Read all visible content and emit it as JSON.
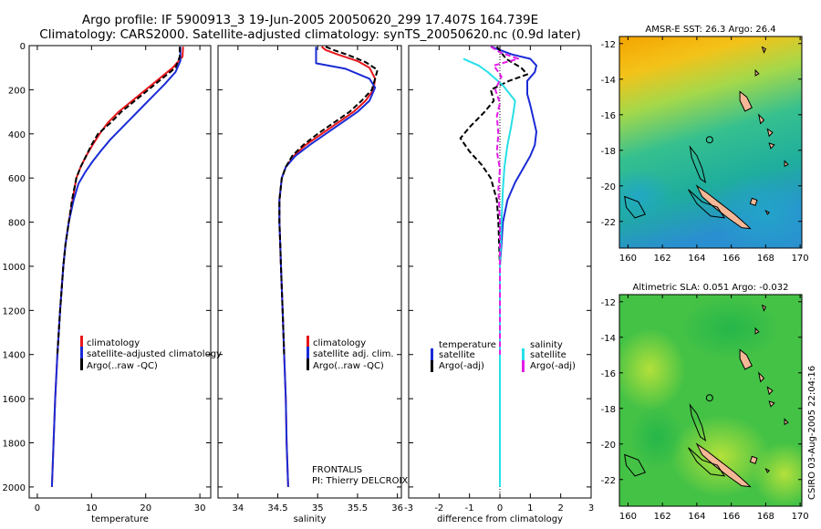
{
  "header": {
    "line1": "Argo profile: IF 5900913_3 19-Jun-2005 20050620_299 17.407S 164.739E",
    "line2": "Climatology: CARS2000. Satellite-adjusted climatology: synTS_20050620.nc (0.9d later)"
  },
  "credit": "CSIRO 03-Aug-2005 22:04:16",
  "chart_data": [
    {
      "id": "temperature",
      "type": "line",
      "xlabel": "temperature",
      "ylabel": "",
      "xlim": [
        -1.5,
        32
      ],
      "ylim": [
        2050,
        0
      ],
      "xticks": [
        0,
        10,
        20,
        30
      ],
      "yticks": [
        0,
        200,
        400,
        600,
        800,
        1000,
        1200,
        1400,
        1600,
        1800,
        2000
      ],
      "legend": [
        "climatology",
        "satellite-adjusted climatology",
        "Argo(..raw -QC)"
      ],
      "series": [
        {
          "name": "climatology",
          "color": "#e8161b",
          "dash": "",
          "points": [
            [
              26.9,
              5
            ],
            [
              26.8,
              50
            ],
            [
              25,
              100
            ],
            [
              22.5,
              150
            ],
            [
              20,
              200
            ],
            [
              17.5,
              250
            ],
            [
              15,
              300
            ],
            [
              13,
              350
            ],
            [
              11.5,
              400
            ],
            [
              10.2,
              450
            ],
            [
              9,
              500
            ],
            [
              8,
              550
            ],
            [
              7.2,
              600
            ],
            [
              6.5,
              700
            ],
            [
              5.8,
              800
            ],
            [
              5.2,
              900
            ],
            [
              4.8,
              1000
            ],
            [
              4.2,
              1200
            ],
            [
              3.7,
              1400
            ],
            [
              3.3,
              1600
            ],
            [
              3,
              1800
            ],
            [
              2.7,
              2000
            ]
          ]
        },
        {
          "name": "satellite-adjusted climatology",
          "color": "#1a2bd6",
          "dash": "",
          "points": [
            [
              26.4,
              5
            ],
            [
              26.4,
              70
            ],
            [
              25.5,
              120
            ],
            [
              23.5,
              175
            ],
            [
              21.5,
              225
            ],
            [
              19.5,
              275
            ],
            [
              17.5,
              325
            ],
            [
              15.5,
              375
            ],
            [
              13.5,
              425
            ],
            [
              11.8,
              475
            ],
            [
              10.2,
              525
            ],
            [
              8.8,
              575
            ],
            [
              7.6,
              625
            ],
            [
              6.7,
              700
            ],
            [
              5.8,
              800
            ],
            [
              5.2,
              900
            ],
            [
              4.8,
              1000
            ],
            [
              4.2,
              1200
            ],
            [
              3.7,
              1400
            ],
            [
              3.3,
              1600
            ],
            [
              3,
              1800
            ],
            [
              2.7,
              2000
            ]
          ]
        },
        {
          "name": "Argo(..raw -QC)",
          "color": "#000000",
          "dash": "6,3",
          "points": [
            [
              26.3,
              5
            ],
            [
              26.3,
              50
            ],
            [
              25.5,
              100
            ],
            [
              23,
              150
            ],
            [
              20.5,
              200
            ],
            [
              18,
              250
            ],
            [
              15.5,
              300
            ],
            [
              13.5,
              350
            ],
            [
              11.2,
              400
            ],
            [
              10,
              450
            ],
            [
              9,
              500
            ],
            [
              8,
              550
            ],
            [
              7.2,
              600
            ],
            [
              6.4,
              700
            ],
            [
              5.8,
              800
            ],
            [
              5.2,
              900
            ],
            [
              4.8,
              1000
            ],
            [
              4.2,
              1200
            ],
            [
              3.7,
              1400
            ]
          ]
        }
      ]
    },
    {
      "id": "salinity",
      "type": "line",
      "xlabel": "salinity",
      "ylabel": "",
      "xlim": [
        33.75,
        36.05
      ],
      "ylim": [
        2050,
        0
      ],
      "xticks": [
        34,
        34.5,
        35,
        35.5,
        36
      ],
      "legend": [
        "climatology",
        "satellite adj. clim.",
        "Argo(..raw -QC)"
      ],
      "annotation": [
        "FRONTALIS",
        "PI: Thierry DELCROIX"
      ],
      "series": [
        {
          "name": "climatology",
          "color": "#e8161b",
          "dash": "",
          "points": [
            [
              35.05,
              5
            ],
            [
              35.1,
              20
            ],
            [
              35.25,
              40
            ],
            [
              35.5,
              70
            ],
            [
              35.65,
              100
            ],
            [
              35.72,
              150
            ],
            [
              35.7,
              200
            ],
            [
              35.6,
              250
            ],
            [
              35.45,
              300
            ],
            [
              35.25,
              350
            ],
            [
              35.05,
              400
            ],
            [
              34.85,
              450
            ],
            [
              34.7,
              500
            ],
            [
              34.6,
              550
            ],
            [
              34.55,
              600
            ],
            [
              34.52,
              700
            ],
            [
              34.52,
              800
            ],
            [
              34.53,
              900
            ],
            [
              34.54,
              1000
            ],
            [
              34.56,
              1200
            ],
            [
              34.58,
              1400
            ],
            [
              34.6,
              1600
            ],
            [
              34.61,
              1800
            ],
            [
              34.63,
              2000
            ]
          ]
        },
        {
          "name": "satellite adj. clim.",
          "color": "#1a2bd6",
          "dash": "",
          "points": [
            [
              34.98,
              5
            ],
            [
              34.98,
              80
            ],
            [
              35.35,
              105
            ],
            [
              35.65,
              150
            ],
            [
              35.72,
              190
            ],
            [
              35.65,
              250
            ],
            [
              35.5,
              300
            ],
            [
              35.3,
              350
            ],
            [
              35.1,
              400
            ],
            [
              34.9,
              450
            ],
            [
              34.72,
              500
            ],
            [
              34.6,
              550
            ],
            [
              34.55,
              600
            ],
            [
              34.52,
              700
            ],
            [
              34.52,
              800
            ],
            [
              34.53,
              900
            ],
            [
              34.54,
              1000
            ],
            [
              34.56,
              1200
            ],
            [
              34.58,
              1400
            ],
            [
              34.6,
              1600
            ],
            [
              34.61,
              1800
            ],
            [
              34.63,
              2000
            ]
          ]
        },
        {
          "name": "Argo(..raw -QC)",
          "color": "#000000",
          "dash": "6,3",
          "points": [
            [
              35.1,
              5
            ],
            [
              35.2,
              20
            ],
            [
              35.4,
              45
            ],
            [
              35.6,
              75
            ],
            [
              35.75,
              110
            ],
            [
              35.72,
              150
            ],
            [
              35.68,
              200
            ],
            [
              35.55,
              250
            ],
            [
              35.4,
              300
            ],
            [
              35.2,
              350
            ],
            [
              35,
              400
            ],
            [
              34.82,
              450
            ],
            [
              34.68,
              500
            ],
            [
              34.6,
              550
            ],
            [
              34.55,
              600
            ],
            [
              34.52,
              700
            ],
            [
              34.52,
              800
            ],
            [
              34.53,
              900
            ],
            [
              34.54,
              1000
            ],
            [
              34.56,
              1200
            ],
            [
              34.58,
              1400
            ]
          ]
        }
      ]
    },
    {
      "id": "difference",
      "type": "line",
      "xlabel": "difference from climatology",
      "ylabel": "",
      "xlim": [
        -3,
        3
      ],
      "ylim": [
        2050,
        0
      ],
      "xticks": [
        -3,
        -2,
        -1,
        0,
        1,
        2,
        3
      ],
      "legend_left": [
        "temperature",
        "satellite",
        "Argo(-adj)"
      ],
      "legend_right": [
        "salinity",
        "satellite",
        "Argo(-adj)"
      ],
      "series": [
        {
          "name": "satellite",
          "color": "#1a2bd6",
          "dash": "",
          "points": [
            [
              -0.3,
              5
            ],
            [
              0.4,
              40
            ],
            [
              1,
              60
            ],
            [
              1.2,
              90
            ],
            [
              1.15,
              120
            ],
            [
              0.9,
              160
            ],
            [
              0.9,
              220
            ],
            [
              1,
              270
            ],
            [
              1.1,
              330
            ],
            [
              1.2,
              390
            ],
            [
              1.15,
              450
            ],
            [
              1,
              500
            ],
            [
              0.75,
              560
            ],
            [
              0.5,
              620
            ],
            [
              0.25,
              700
            ],
            [
              0.1,
              800
            ],
            [
              0.05,
              900
            ],
            [
              0,
              1000
            ],
            [
              0,
              2000
            ]
          ]
        },
        {
          "name": "Argo(-adj)",
          "color": "#000000",
          "dash": "6,3",
          "points": [
            [
              -0.1,
              5
            ],
            [
              0.2,
              60
            ],
            [
              0.7,
              100
            ],
            [
              0.9,
              130
            ],
            [
              0.3,
              160
            ],
            [
              -0.3,
              200
            ],
            [
              -0.2,
              250
            ],
            [
              -0.5,
              300
            ],
            [
              -1,
              370
            ],
            [
              -1.3,
              420
            ],
            [
              -1,
              480
            ],
            [
              -0.6,
              540
            ],
            [
              -0.3,
              600
            ],
            [
              -0.1,
              700
            ],
            [
              -0.05,
              800
            ],
            [
              0,
              1000
            ],
            [
              0,
              1400
            ]
          ]
        },
        {
          "name": "satellite",
          "color": "#27dfe8",
          "dash": "",
          "points": [
            [
              -1.2,
              60
            ],
            [
              -0.7,
              90
            ],
            [
              -0.4,
              120
            ],
            [
              0.1,
              180
            ],
            [
              0.5,
              250
            ],
            [
              0.45,
              300
            ],
            [
              0.35,
              380
            ],
            [
              0.25,
              450
            ],
            [
              0.15,
              550
            ],
            [
              0.1,
              650
            ],
            [
              0.05,
              800
            ],
            [
              0,
              1000
            ],
            [
              0,
              2000
            ]
          ]
        },
        {
          "name": "Argo(-adj)",
          "color": "#e21ce6",
          "dash": "6,3",
          "points": [
            [
              -0.3,
              5
            ],
            [
              0,
              30
            ],
            [
              0.6,
              60
            ],
            [
              -0.2,
              90
            ],
            [
              0.05,
              140
            ],
            [
              -0.15,
              200
            ],
            [
              0,
              260
            ],
            [
              -0.1,
              320
            ],
            [
              -0.05,
              400
            ],
            [
              -0.1,
              480
            ],
            [
              0,
              560
            ],
            [
              -0.05,
              650
            ],
            [
              0,
              800
            ],
            [
              0,
              1400
            ]
          ]
        }
      ]
    },
    {
      "id": "sst-map",
      "type": "heatmap",
      "title": "AMSR-E SST: 26.3 Argo: 26.4",
      "xlim": [
        159.5,
        170.1
      ],
      "ylim": [
        -23.5,
        -11.6
      ],
      "xticks": [
        160,
        162,
        164,
        166,
        168,
        170
      ],
      "yticks": [
        -12,
        -14,
        -16,
        -18,
        -20,
        -22
      ],
      "float_position": [
        164.739,
        -17.407
      ]
    },
    {
      "id": "sla-map",
      "type": "heatmap",
      "title": "Altimetric SLA: 0.051 Argo: -0.032",
      "xlim": [
        159.5,
        170.1
      ],
      "ylim": [
        -23.5,
        -11.6
      ],
      "xticks": [
        160,
        162,
        164,
        166,
        168,
        170
      ],
      "yticks": [
        -12,
        -14,
        -16,
        -18,
        -20,
        -22
      ],
      "float_position": [
        164.739,
        -17.407
      ]
    }
  ]
}
